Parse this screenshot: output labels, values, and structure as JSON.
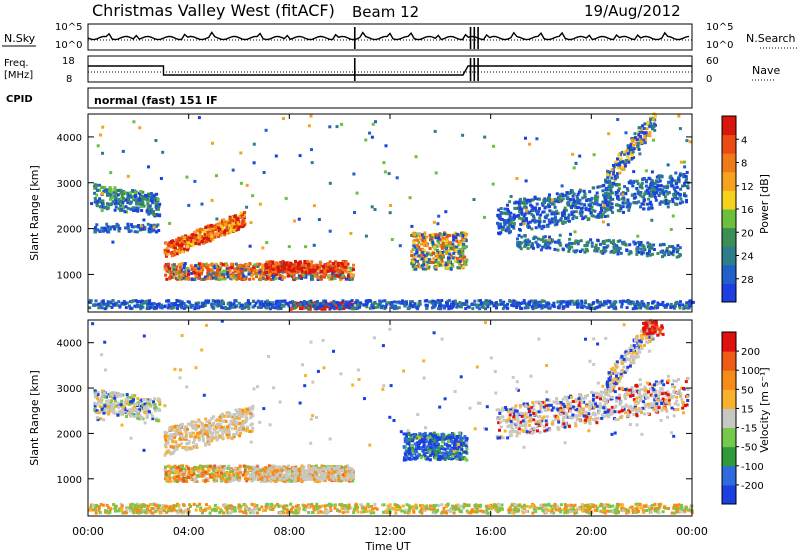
{
  "header": {
    "title": "Christmas Valley West (fitACF)",
    "beam": "Beam 12",
    "date": "19/Aug/2012"
  },
  "noise_panel": {
    "left_label": "N.Sky",
    "left_ticks": [
      "10^5",
      "10^0"
    ],
    "right_ticks": [
      "10^5",
      "10^0"
    ],
    "right_label": "N.Search"
  },
  "freq_panel": {
    "left_label_1": "Freq.",
    "left_label_2": "[MHz]",
    "left_ticks": [
      "18",
      "8"
    ],
    "right_ticks": [
      "60",
      "0"
    ],
    "right_label": "Nave"
  },
  "cpid": {
    "label": "CPID",
    "value": "normal (fast) 151 IF"
  },
  "chart_data": [
    {
      "type": "heatmap",
      "name": "power",
      "ylabel": "Slant Range [km]",
      "ylim": [
        180,
        4500
      ],
      "yticks": [
        1000,
        2000,
        3000,
        4000
      ],
      "xlim_hours": [
        0,
        24
      ],
      "colorbar": {
        "label": "Power [dB]",
        "ticks": [
          "4",
          "8",
          "12",
          "16",
          "20",
          "24",
          "28"
        ],
        "colors": [
          "#1c3fe0",
          "#2060c8",
          "#2e7d8a",
          "#3b8f55",
          "#6cbf3b",
          "#f5d21e",
          "#f5a21e",
          "#f07a1a",
          "#e94b12",
          "#d8160c"
        ]
      }
    },
    {
      "type": "heatmap",
      "name": "velocity",
      "ylabel": "Slant Range [km]",
      "ylim": [
        180,
        4500
      ],
      "yticks": [
        1000,
        2000,
        3000,
        4000
      ],
      "xlim_hours": [
        0,
        24
      ],
      "colorbar": {
        "label": "Velocity [m s⁻¹]",
        "ticks": [
          "200",
          "100",
          "50",
          "15",
          "-15",
          "-50",
          "-100",
          "-200"
        ],
        "colors": [
          "#1c3fe0",
          "#2f6ae0",
          "#2e9a3a",
          "#74c84a",
          "#c8c8c2",
          "#f7b12d",
          "#f58c1a",
          "#ef5b15",
          "#e01010"
        ]
      }
    }
  ],
  "x_axis": {
    "ticks": [
      "00:00",
      "04:00",
      "08:00",
      "12:00",
      "16:00",
      "20:00",
      "00:00"
    ],
    "label": "Time UT"
  }
}
